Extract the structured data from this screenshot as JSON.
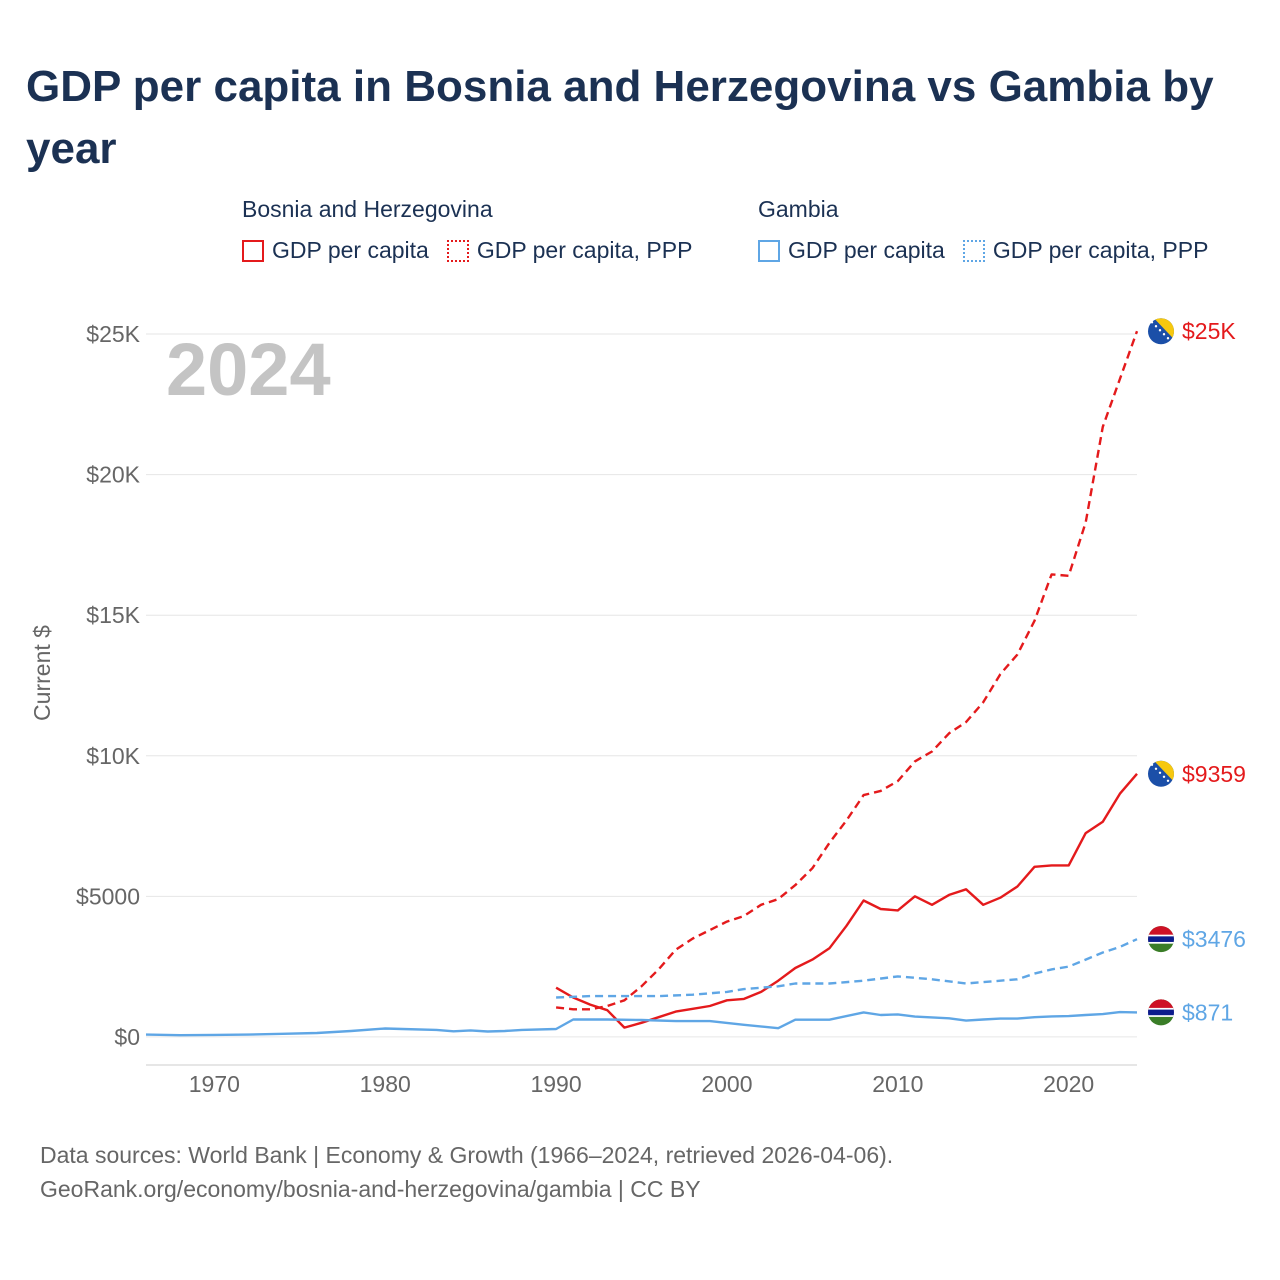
{
  "title": "GDP per capita in Bosnia and Herzegovina vs Gambia by year",
  "legend": {
    "groups": [
      {
        "country": "Bosnia and Herzegovina",
        "color": "#e41a1c",
        "items": [
          {
            "label": "GDP per capita",
            "style": "solid"
          },
          {
            "label": "GDP per capita, PPP",
            "style": "dotted"
          }
        ]
      },
      {
        "country": "Gambia",
        "color": "#5fa6e5",
        "items": [
          {
            "label": "GDP per capita",
            "style": "solid"
          },
          {
            "label": "GDP per capita, PPP",
            "style": "dotted"
          }
        ]
      }
    ]
  },
  "footer": {
    "line1": "Data sources: World Bank | Economy & Growth (1966–2024, retrieved 2026-04-06).",
    "line2": "GeoRank.org/economy/bosnia-and-herzegovina/gambia | CC BY"
  },
  "chart_data": {
    "type": "line",
    "title": "GDP per capita in Bosnia and Herzegovina vs Gambia by year",
    "year_label": "2024",
    "ylabel": "Current $",
    "xlabel": "",
    "xlim": [
      1966,
      2024
    ],
    "ylim": [
      -1000,
      25500
    ],
    "x_ticks": [
      1970,
      1980,
      1990,
      2000,
      2010,
      2020
    ],
    "y_ticks": [
      {
        "value": 0,
        "label": "$0"
      },
      {
        "value": 5000,
        "label": "$5000"
      },
      {
        "value": 10000,
        "label": "$10K"
      },
      {
        "value": 15000,
        "label": "$15K"
      },
      {
        "value": 20000,
        "label": "$20K"
      },
      {
        "value": 25000,
        "label": "$25K"
      }
    ],
    "series": [
      {
        "name": "Bosnia and Herzegovina GDP per capita, PPP",
        "color": "#e41a1c",
        "dashed": true,
        "end_label": "$25K",
        "flag": "bosnia-flag",
        "x": [
          1990,
          1991,
          1992,
          1993,
          1994,
          1995,
          1996,
          1997,
          1998,
          1999,
          2000,
          2001,
          2002,
          2003,
          2004,
          2005,
          2006,
          2007,
          2008,
          2009,
          2010,
          2011,
          2012,
          2013,
          2014,
          2015,
          2016,
          2017,
          2018,
          2019,
          2020,
          2021,
          2022,
          2023,
          2024
        ],
        "values": [
          1050,
          980,
          980,
          1100,
          1300,
          1800,
          2400,
          3100,
          3500,
          3800,
          4100,
          4300,
          4700,
          4900,
          5400,
          6000,
          6900,
          7700,
          8600,
          8750,
          9100,
          9800,
          10150,
          10800,
          11200,
          11900,
          12900,
          13600,
          14800,
          16450,
          16400,
          18300,
          21700,
          23400,
          25100
        ]
      },
      {
        "name": "Bosnia and Herzegovina GDP per capita",
        "color": "#e41a1c",
        "dashed": false,
        "end_label": "$9359",
        "flag": "bosnia-flag",
        "x": [
          1990,
          1991,
          1992,
          1993,
          1994,
          1995,
          1996,
          1997,
          1998,
          1999,
          2000,
          2001,
          2002,
          2003,
          2004,
          2005,
          2006,
          2007,
          2008,
          2009,
          2010,
          2011,
          2012,
          2013,
          2014,
          2015,
          2016,
          2017,
          2018,
          2019,
          2020,
          2021,
          2022,
          2023,
          2024
        ],
        "values": [
          1750,
          1400,
          1150,
          950,
          330,
          500,
          700,
          900,
          1000,
          1100,
          1300,
          1350,
          1600,
          2000,
          2450,
          2750,
          3150,
          3950,
          4850,
          4550,
          4500,
          5000,
          4700,
          5050,
          5250,
          4700,
          4950,
          5350,
          6050,
          6100,
          6100,
          7250,
          7650,
          8650,
          9359
        ]
      },
      {
        "name": "Gambia GDP per capita, PPP",
        "color": "#5fa6e5",
        "dashed": true,
        "end_label": "$3476",
        "flag": "gambia-flag",
        "x": [
          1990,
          1992,
          1994,
          1996,
          1998,
          2000,
          2001,
          2002,
          2003,
          2004,
          2005,
          2006,
          2008,
          2010,
          2011,
          2012,
          2014,
          2016,
          2017,
          2018,
          2019,
          2020,
          2021,
          2022,
          2023,
          2024
        ],
        "values": [
          1400,
          1450,
          1450,
          1450,
          1500,
          1600,
          1700,
          1750,
          1800,
          1900,
          1900,
          1900,
          2000,
          2150,
          2100,
          2050,
          1900,
          2000,
          2050,
          2250,
          2400,
          2500,
          2750,
          3000,
          3200,
          3476
        ]
      },
      {
        "name": "Gambia GDP per capita",
        "color": "#5fa6e5",
        "dashed": false,
        "end_label": "$871",
        "flag": "gambia-flag",
        "x": [
          1966,
          1968,
          1970,
          1972,
          1974,
          1976,
          1978,
          1980,
          1981,
          1983,
          1984,
          1985,
          1986,
          1987,
          1988,
          1990,
          1991,
          1993,
          1995,
          1997,
          1999,
          2001,
          2003,
          2004,
          2006,
          2008,
          2009,
          2010,
          2011,
          2013,
          2014,
          2015,
          2016,
          2017,
          2018,
          2019,
          2020,
          2021,
          2022,
          2023,
          2024
        ],
        "values": [
          80,
          60,
          70,
          80,
          110,
          140,
          210,
          300,
          280,
          250,
          200,
          230,
          190,
          210,
          250,
          280,
          620,
          620,
          600,
          560,
          560,
          430,
          310,
          610,
          610,
          870,
          780,
          800,
          720,
          660,
          580,
          620,
          650,
          650,
          700,
          730,
          740,
          780,
          810,
          880,
          871
        ]
      }
    ]
  }
}
